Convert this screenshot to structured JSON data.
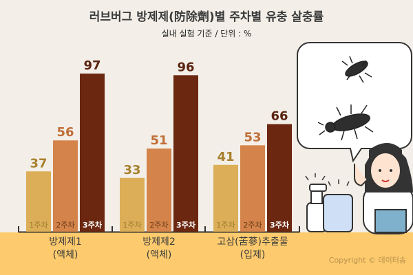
{
  "title": "러브버그 방제제(防除劑)별 주차별 유충 살충률",
  "subtitle": "실내 실험 기준 / 단위 : %",
  "copyright": "Copyright © 데이터솜",
  "chart_data": {
    "type": "bar",
    "title": "러브버그 방제제(防除劑)별 주차별 유충 살충률",
    "subtitle": "실내 실험 기준 / 단위 : %",
    "categories": [
      {
        "line1": "방제제1",
        "line2": "(액체)"
      },
      {
        "line1": "방제제2",
        "line2": "(액체)"
      },
      {
        "line1": "고삼(苦蔘)추출물",
        "line2": "(입제)"
      }
    ],
    "series": [
      {
        "name": "1주차",
        "values": [
          37,
          33,
          41
        ],
        "color": "#dcae58",
        "label_color": "#a8802e"
      },
      {
        "name": "2주차",
        "values": [
          56,
          51,
          53
        ],
        "color": "#d4844a",
        "label_color": "#c06e38"
      },
      {
        "name": "3주차",
        "values": [
          97,
          96,
          66
        ],
        "color": "#6b2710",
        "label_color": "#5a2410"
      }
    ],
    "ylim": [
      0,
      100
    ],
    "grid": false
  },
  "colors": {
    "background": "#f3efe8",
    "band": "#fdcb6e"
  }
}
